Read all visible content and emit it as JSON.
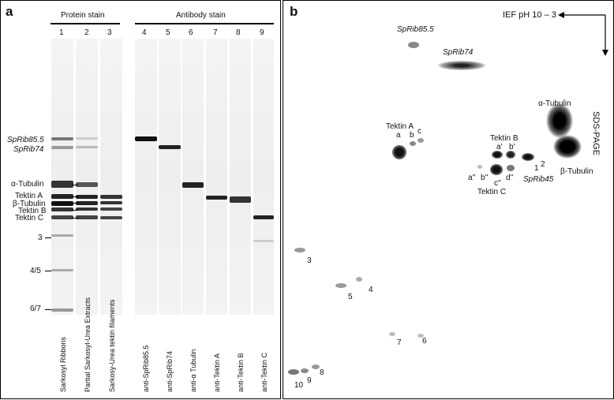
{
  "panel_a": {
    "letter": "a",
    "protein_header": "Protein stain",
    "antibody_header": "Antibody stain",
    "lane_numbers": [
      "1",
      "2",
      "3",
      "4",
      "5",
      "6",
      "7",
      "8",
      "9"
    ],
    "markers": {
      "sprib85": "SpRib85.5",
      "sprib74": "SpRib74",
      "atub": "α-Tubulin",
      "tektA": "Tektin A",
      "btub": "β-Tubulin",
      "tektB": "Tektin B",
      "tektC": "Tektin C",
      "m3": "3",
      "m45": "4/5",
      "m67": "6/7"
    },
    "lane_labels": [
      "Sarkosyl Ribbons",
      "Partial Sarkosyl-Urea Extracts",
      "Sarkosy-Urea tektin filaments",
      "anti-SpRib85.5",
      "anti-SpRib74",
      "anti-α Tubulin",
      "anti-Tektin A",
      "anti-Tektin B",
      "anti-Tektin C"
    ]
  },
  "panel_b": {
    "letter": "b",
    "ief_label": "IEF pH 10 – 3",
    "sds_label": "SDS-PAGE",
    "spot_labels": {
      "sprib85": "SpRib85.5",
      "sprib74": "SpRib74",
      "atub": "α-Tubulin",
      "btub": "β-Tubulin",
      "tektA": "Tektin A",
      "tektB": "Tektin B",
      "tektC": "Tektin C",
      "sprib45": "SpRib45",
      "a": "a",
      "b": "b",
      "c": "c",
      "a1": "a'",
      "b1": "b'",
      "a2": "a''",
      "b2": "b''",
      "c2": "c''",
      "d2": "d''",
      "n1": "1",
      "n2": "2",
      "n3": "3",
      "n4": "4",
      "n5": "5",
      "n6": "6",
      "n7": "7",
      "n8": "8",
      "n9": "9",
      "n10": "10"
    }
  }
}
